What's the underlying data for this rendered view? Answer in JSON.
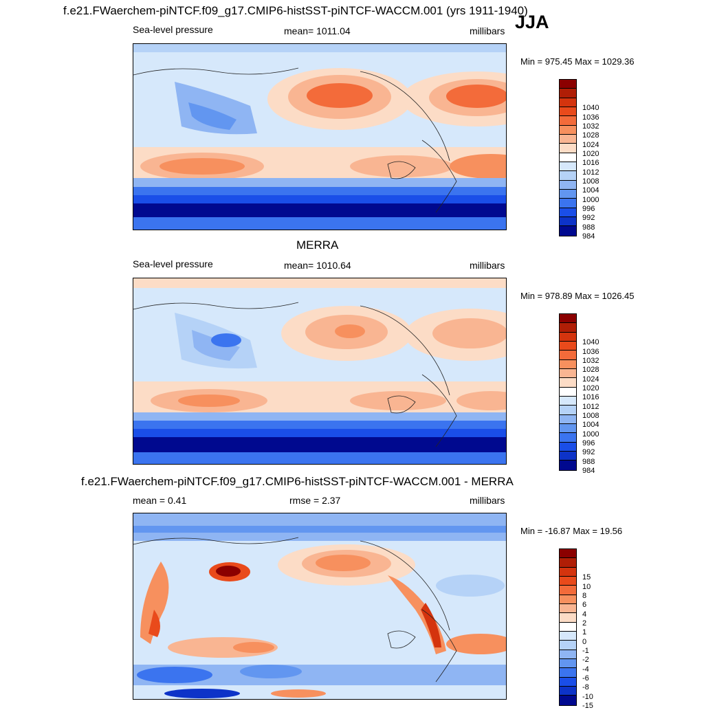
{
  "header": {
    "title": "f.e21.FWaerchem-piNTCF.f09_g17.CMIP6-histSST-piNTCF-WACCM.001 (yrs 1911-1940)",
    "season": "JJA"
  },
  "panels": [
    {
      "id": "model",
      "left_label": "Sea-level pressure",
      "center_label": "mean= 1011.04",
      "right_label": "millibars",
      "minmax": "Min = 975.45 Max = 1029.36",
      "colorbar": {
        "levels": [
          "1040",
          "1036",
          "1032",
          "1028",
          "1024",
          "1020",
          "1016",
          "1012",
          "1008",
          "1004",
          "1000",
          "996",
          "992",
          "988",
          "984"
        ],
        "colors": [
          "#8b0000",
          "#b01e06",
          "#d4340e",
          "#e94a1b",
          "#f36b3a",
          "#f7905e",
          "#f9b592",
          "#fcdcc6",
          "#ffffff",
          "#d6e8fb",
          "#b5d2f7",
          "#8fb5f3",
          "#6296f0",
          "#3b74ef",
          "#1a4ee8",
          "#0d33c8",
          "#00098f"
        ]
      }
    },
    {
      "id": "obs",
      "title": "MERRA",
      "left_label": "Sea-level pressure",
      "center_label": "mean= 1010.64",
      "right_label": "millibars",
      "minmax": "Min = 978.89 Max = 1026.45",
      "colorbar": {
        "levels": [
          "1040",
          "1036",
          "1032",
          "1028",
          "1024",
          "1020",
          "1016",
          "1012",
          "1008",
          "1004",
          "1000",
          "996",
          "992",
          "988",
          "984"
        ],
        "colors": [
          "#8b0000",
          "#b01e06",
          "#d4340e",
          "#e94a1b",
          "#f36b3a",
          "#f7905e",
          "#f9b592",
          "#fcdcc6",
          "#ffffff",
          "#d6e8fb",
          "#b5d2f7",
          "#8fb5f3",
          "#6296f0",
          "#3b74ef",
          "#1a4ee8",
          "#0d33c8",
          "#00098f"
        ]
      }
    },
    {
      "id": "diff",
      "title": "f.e21.FWaerchem-piNTCF.f09_g17.CMIP6-histSST-piNTCF-WACCM.001 - MERRA",
      "left_label": "mean =   0.41",
      "center_label": "rmse =   2.37",
      "right_label": "millibars",
      "minmax": "Min = -16.87 Max =  19.56",
      "colorbar": {
        "levels": [
          "15",
          "10",
          "8",
          "6",
          "4",
          "2",
          "1",
          "0",
          "-1",
          "-2",
          "-4",
          "-6",
          "-8",
          "-10",
          "-15"
        ],
        "colors": [
          "#8b0000",
          "#b01e06",
          "#d4340e",
          "#e94a1b",
          "#f36b3a",
          "#f7905e",
          "#f9b592",
          "#fcdcc6",
          "#ffffff",
          "#d6e8fb",
          "#b5d2f7",
          "#8fb5f3",
          "#6296f0",
          "#3b74ef",
          "#1a4ee8",
          "#0d33c8",
          "#00098f"
        ]
      }
    }
  ]
}
